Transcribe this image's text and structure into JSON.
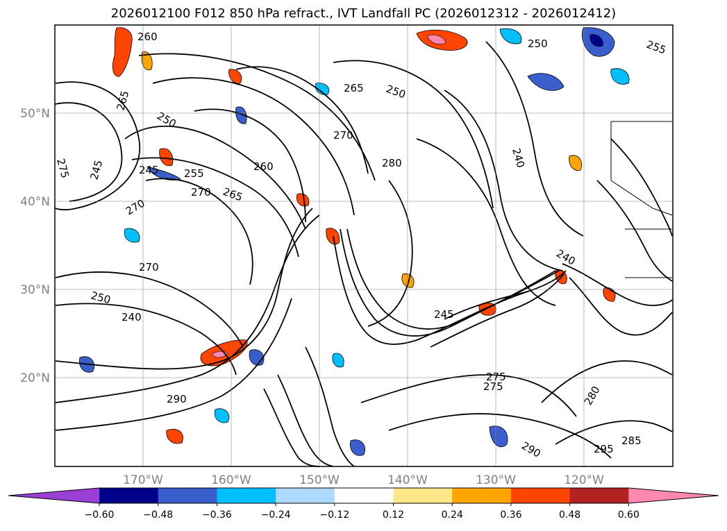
{
  "title": "2026012100 F012 850 hPa refract., IVT Landfall PC (2026012312 - 2026012412)",
  "lat_labels": [
    "50°N",
    "40°N",
    "30°N",
    "20°N"
  ],
  "lon_labels": [
    "170°W",
    "160°W",
    "150°W",
    "140°W",
    "130°W",
    "120°W"
  ],
  "contour_labels": [
    "260",
    "265",
    "250",
    "270",
    "245",
    "255",
    "270",
    "265",
    "275",
    "250",
    "270",
    "250",
    "240",
    "245",
    "275",
    "260",
    "280",
    "240",
    "265",
    "270",
    "290",
    "275",
    "280",
    "295",
    "285",
    "290",
    "245",
    "240",
    "250",
    "255"
  ],
  "colorbar": {
    "ticks": [
      "−0.60",
      "−0.48",
      "−0.36",
      "−0.24",
      "−0.12",
      "0.12",
      "0.24",
      "0.36",
      "0.48",
      "0.60"
    ],
    "colors": [
      "#9a3fd6",
      "#00008b",
      "#3a5fcd",
      "#00bfff",
      "#add8ff",
      "#ffffff",
      "#ffe88a",
      "#ffa500",
      "#ff4500",
      "#b22222",
      "#ff88b0",
      "#ff88b0"
    ]
  }
}
